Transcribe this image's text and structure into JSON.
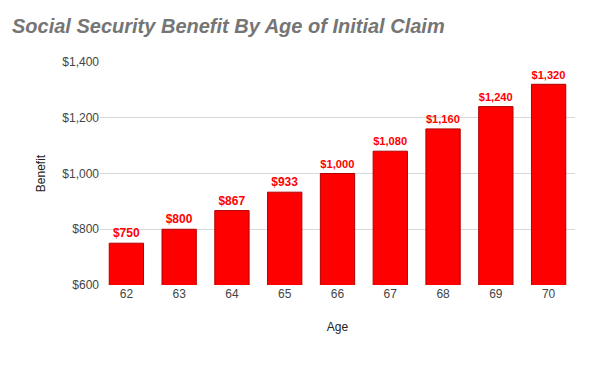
{
  "chart_data": {
    "type": "bar",
    "title": "Social Security Benefit By Age of Initial Claim",
    "x_label": "Age",
    "y_label": "Benefit",
    "categories": [
      "62",
      "63",
      "64",
      "65",
      "66",
      "67",
      "68",
      "69",
      "70"
    ],
    "values": [
      750,
      800,
      867,
      933,
      1000,
      1080,
      1160,
      1240,
      1320
    ],
    "value_labels": [
      "$750",
      "$800",
      "$867",
      "$933",
      "$1,000",
      "$1,080",
      "$1,160",
      "$1,240",
      "$1,320"
    ],
    "data_labels": true,
    "color": "#ff0000",
    "ylim": [
      600,
      1400
    ],
    "yticks": [
      {
        "value": 600,
        "label": "$600"
      },
      {
        "value": 800,
        "label": "$800"
      },
      {
        "value": 1000,
        "label": "$1,000"
      },
      {
        "value": 1200,
        "label": "$1,200"
      },
      {
        "value": 1400,
        "label": "$1,400"
      }
    ],
    "grid": true
  }
}
